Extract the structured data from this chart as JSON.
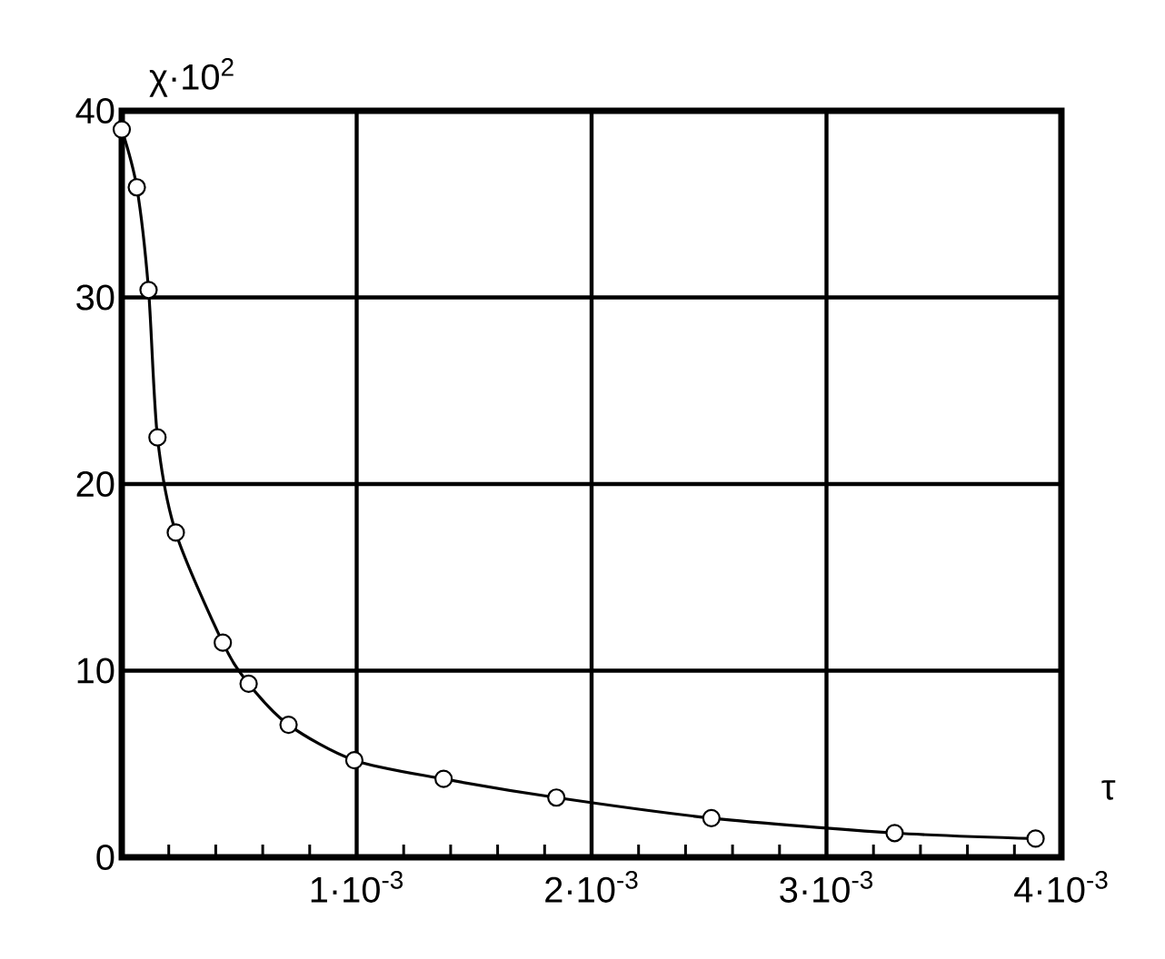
{
  "chart_data": {
    "type": "line",
    "xlabel": "τ",
    "ylabel": "χ·10$^{2}$",
    "x": [
      0,
      6.4e-05,
      0.000114,
      0.000152,
      0.00023,
      0.00043,
      0.00054,
      0.00071,
      0.00099,
      0.00137,
      0.00185,
      0.00251,
      0.00329,
      0.00389
    ],
    "values": [
      39,
      35.9,
      30.4,
      22.5,
      17.4,
      11.5,
      9.3,
      7.1,
      5.2,
      4.2,
      3.2,
      2.1,
      1.3,
      1.0
    ],
    "color": "#000000",
    "marker": "circle",
    "line_style": "solid",
    "grid": true,
    "xlim": [
      0,
      0.004
    ],
    "ylim": [
      0,
      40
    ],
    "xticks": [
      {
        "value": 0.0002,
        "label": null
      },
      {
        "value": 0.0004,
        "label": null
      },
      {
        "value": 0.0006,
        "label": null
      },
      {
        "value": 0.0008,
        "label": null
      },
      {
        "value": 0.001,
        "label": "1·10$^{-3}$"
      },
      {
        "value": 0.0012,
        "label": null
      },
      {
        "value": 0.0014,
        "label": null
      },
      {
        "value": 0.0016,
        "label": null
      },
      {
        "value": 0.0018,
        "label": null
      },
      {
        "value": 0.002,
        "label": "2·10$^{-3}$"
      },
      {
        "value": 0.0022,
        "label": null
      },
      {
        "value": 0.0024,
        "label": null
      },
      {
        "value": 0.0026,
        "label": null
      },
      {
        "value": 0.0028,
        "label": null
      },
      {
        "value": 0.003,
        "label": "3·10$^{-3}$"
      },
      {
        "value": 0.0032,
        "label": null
      },
      {
        "value": 0.0034,
        "label": null
      },
      {
        "value": 0.0036,
        "label": null
      },
      {
        "value": 0.0038,
        "label": null
      },
      {
        "value": 0.004,
        "label": "4·10$^{-3}$"
      }
    ],
    "yticks": [
      0,
      10,
      20,
      30,
      40
    ]
  }
}
